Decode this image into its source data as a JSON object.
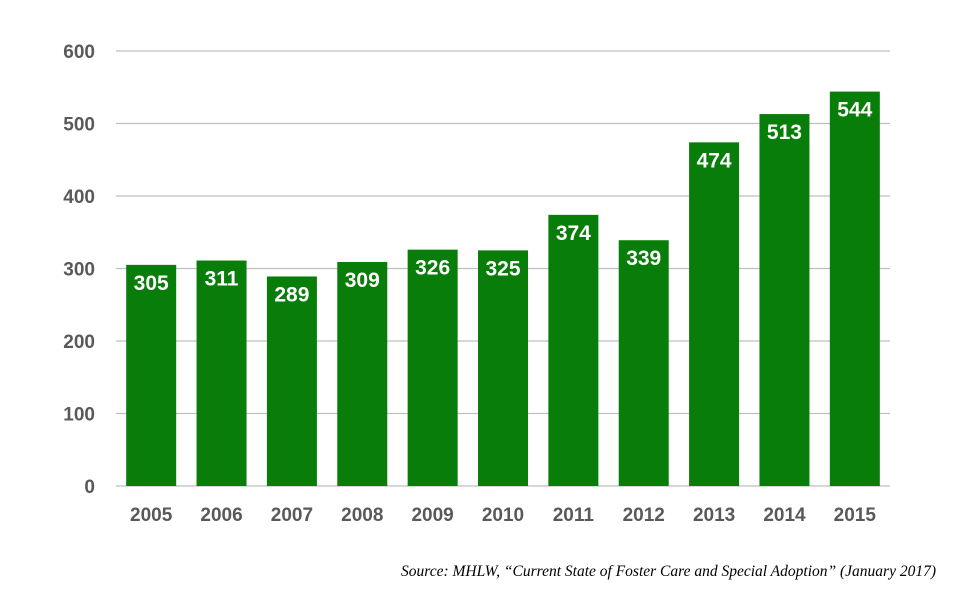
{
  "chart_data": {
    "type": "bar",
    "title": "",
    "xlabel": "",
    "ylabel": "",
    "categories": [
      "2005",
      "2006",
      "2007",
      "2008",
      "2009",
      "2010",
      "2011",
      "2012",
      "2013",
      "2014",
      "2015"
    ],
    "values": [
      305,
      311,
      289,
      309,
      326,
      325,
      374,
      339,
      474,
      513,
      544
    ],
    "ylim": [
      0,
      600
    ],
    "yticks": [
      0,
      100,
      200,
      300,
      400,
      500,
      600
    ],
    "grid": true,
    "legend": "none",
    "data_labels": true,
    "bar_color": "#087d09",
    "grid_color": "#bfbfbf",
    "tick_color": "#595959",
    "label_color": "#ffffff"
  },
  "source_note": "Source: MHLW, “Current State of Foster Care and Special Adoption” (January 2017)"
}
